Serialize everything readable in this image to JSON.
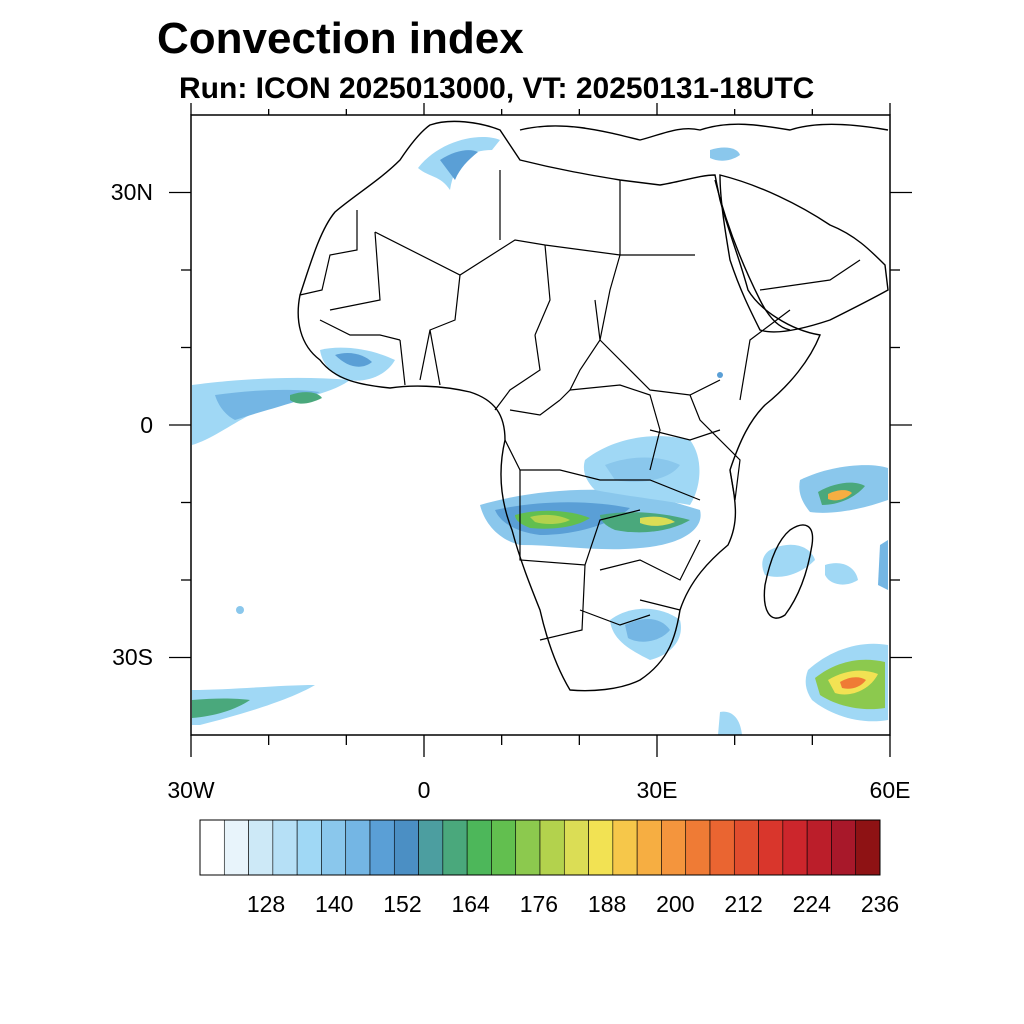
{
  "title": "Convection index",
  "subtitle": "Run: ICON 2025013000,  VT: 20250131-18UTC",
  "map": {
    "projection": "lon-lat",
    "lon_range": [
      -30,
      60
    ],
    "lat_range": [
      -40,
      40
    ],
    "lon_ticks": [
      {
        "value": -30,
        "label": "30W"
      },
      {
        "value": 0,
        "label": "0"
      },
      {
        "value": 30,
        "label": "30E"
      },
      {
        "value": 60,
        "label": "60E"
      }
    ],
    "lat_ticks": [
      {
        "value": 30,
        "label": "30N"
      },
      {
        "value": 0,
        "label": "0"
      },
      {
        "value": -30,
        "label": "30S"
      }
    ],
    "minor_lon_ticks": [
      -20,
      -10,
      10,
      20,
      40,
      50
    ],
    "minor_lat_ticks": [
      20,
      10,
      -10,
      -20
    ]
  },
  "colorbar": {
    "levels": [
      128,
      140,
      152,
      164,
      176,
      188,
      200,
      212,
      224,
      236
    ],
    "label_texts": [
      "128",
      "140",
      "152",
      "164",
      "176",
      "188",
      "200",
      "212",
      "224",
      "236"
    ],
    "colors": [
      "#ffffff",
      "#e8f4fb",
      "#cde9f7",
      "#b6e0f6",
      "#a0d8f5",
      "#8ac7ec",
      "#74b6e4",
      "#5a9fd6",
      "#4b8fc4",
      "#4c9ea0",
      "#4aa87c",
      "#4db75a",
      "#62bf4f",
      "#8cc94e",
      "#b3d24d",
      "#dbdd55",
      "#f2e253",
      "#f6c74a",
      "#f6ae42",
      "#f4953d",
      "#ef7b35",
      "#ea6531",
      "#e14d2e",
      "#d9362c",
      "#cc262c",
      "#bb1e2a",
      "#a8182a",
      "#8e1214"
    ]
  },
  "chart_data": {
    "type": "heatmap",
    "title": "Convection index",
    "subtitle": "Run: ICON 2025013000,  VT: 20250131-18UTC",
    "x_ticks": [
      "30W",
      "0",
      "30E",
      "60E"
    ],
    "y_ticks": [
      "30N",
      "0",
      "30S"
    ],
    "xlim": [
      -30,
      60
    ],
    "ylim": [
      -40,
      40
    ],
    "colorbar_levels": [
      128,
      140,
      152,
      164,
      176,
      188,
      200,
      212,
      224,
      236
    ],
    "regions": [
      {
        "lon": -6,
        "lat": 34,
        "value": 145
      },
      {
        "lon": -16,
        "lat": 3,
        "value": 165
      },
      {
        "lon": -9,
        "lat": 7,
        "value": 140
      },
      {
        "lon": 13,
        "lat": -13,
        "value": 185
      },
      {
        "lon": 27,
        "lat": -12,
        "value": 170
      },
      {
        "lon": 30,
        "lat": -5,
        "value": 140
      },
      {
        "lon": 28,
        "lat": -27,
        "value": 150
      },
      {
        "lon": 53,
        "lat": -10,
        "value": 200
      },
      {
        "lon": 47,
        "lat": -18,
        "value": 150
      },
      {
        "lon": 56,
        "lat": -34,
        "value": 210
      },
      {
        "lon": -26,
        "lat": -36,
        "value": 165
      },
      {
        "lon": 39,
        "lat": -38,
        "value": 140
      },
      {
        "lon": 36,
        "lat": 33,
        "value": 140
      }
    ]
  }
}
